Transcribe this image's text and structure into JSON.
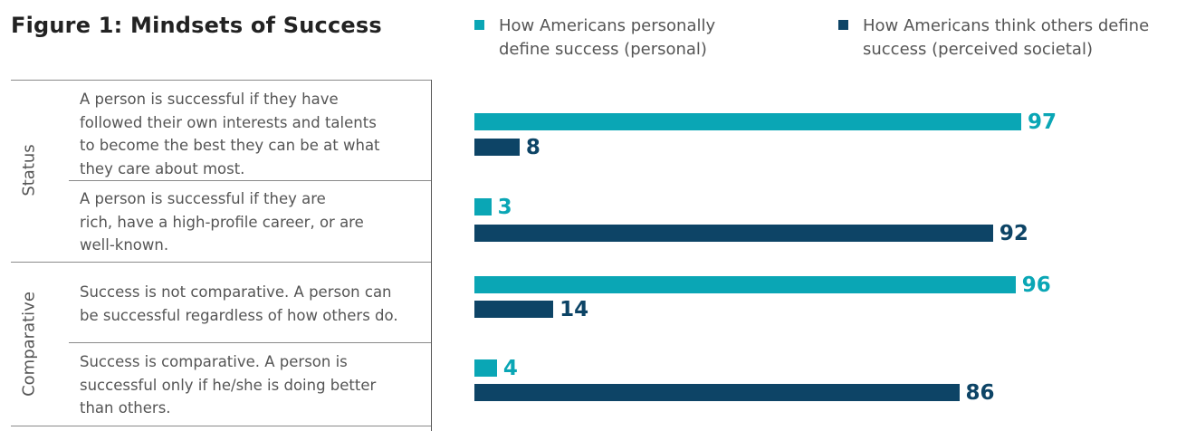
{
  "title": "Figure 1: Mindsets of Success",
  "chart_data": {
    "type": "bar",
    "orientation": "horizontal",
    "title": "Figure 1: Mindsets of Success",
    "groups": [
      {
        "label": "Status",
        "rows": [
          0,
          1
        ]
      },
      {
        "label": "Comparative",
        "rows": [
          2,
          3
        ]
      }
    ],
    "categories": [
      "A person is successful if they have\nfollowed their own interests and talents\nto become the best they can be at what\nthey care about most.",
      "A person is successful if they are\nrich, have a high-profile career, or are\nwell-known.",
      "Success is not comparative. A person can\nbe successful regardless of how others do.",
      "Success is comparative. A person is\nsuccessful only if he/she is doing better\nthan others."
    ],
    "series": [
      {
        "name": "How Americans personally\ndefine success (personal)",
        "color": "#0aa6b5",
        "values": [
          97,
          3,
          96,
          4
        ]
      },
      {
        "name": "How Americans think others define\nsuccess (perceived societal)",
        "color": "#0d4466",
        "values": [
          8,
          92,
          14,
          86
        ]
      }
    ],
    "xlim": [
      0,
      100
    ],
    "legend_position": "top",
    "grid": false
  }
}
